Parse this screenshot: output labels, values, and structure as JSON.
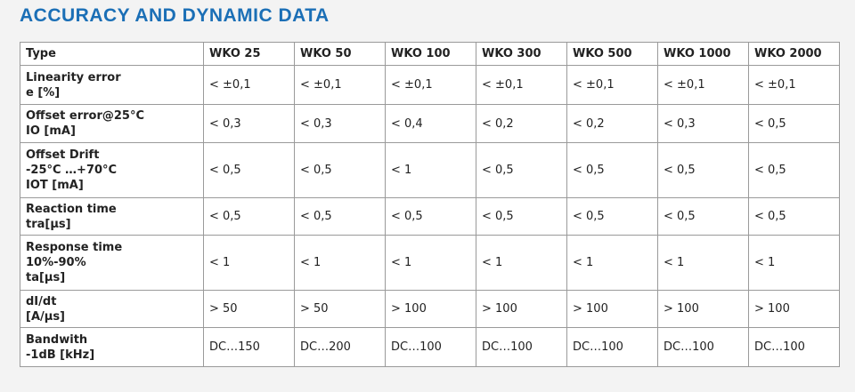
{
  "header": {
    "title": "ACCURACY AND DYNAMIC DATA"
  },
  "table": {
    "columns": [
      "Type",
      "WKO 25",
      "WKO 50",
      "WKO 100",
      "WKO 300",
      "WKO 500",
      "WKO 1000",
      "WKO 2000"
    ],
    "rows": [
      {
        "label": [
          "Linearity error",
          "e [%]"
        ],
        "cells": [
          "< ±0,1",
          "< ±0,1",
          "< ±0,1",
          "< ±0,1",
          "< ±0,1",
          "< ±0,1",
          "< ±0,1"
        ]
      },
      {
        "label": [
          "Offset error@25°C",
          "IO [mA]"
        ],
        "cells": [
          "< 0,3",
          "< 0,3",
          "< 0,4",
          "< 0,2",
          "< 0,2",
          "< 0,3",
          "< 0,5"
        ]
      },
      {
        "label": [
          "Offset Drift",
          "-25°C …+70°C",
          "IOT [mA]"
        ],
        "cells": [
          "< 0,5",
          "< 0,5",
          "< 1",
          "< 0,5",
          "< 0,5",
          "< 0,5",
          "< 0,5"
        ]
      },
      {
        "label": [
          "Reaction time",
          "tra[µs]"
        ],
        "cells": [
          "< 0,5",
          "< 0,5",
          "< 0,5",
          "< 0,5",
          "< 0,5",
          "< 0,5",
          "< 0,5"
        ]
      },
      {
        "label": [
          "Response time",
          "10%-90%",
          "ta[µs]"
        ],
        "cells": [
          "< 1",
          "< 1",
          "< 1",
          "< 1",
          "< 1",
          "< 1",
          "< 1"
        ]
      },
      {
        "label": [
          "dI/dt",
          "[A/µs]"
        ],
        "cells": [
          "> 50",
          "> 50",
          "> 100",
          "> 100",
          "> 100",
          "> 100",
          "> 100"
        ]
      },
      {
        "label": [
          "Bandwith",
          "-1dB [kHz]"
        ],
        "cells": [
          "DC…150",
          "DC…200",
          "DC…100",
          "DC…100",
          "DC…100",
          "DC…100",
          "DC…100"
        ]
      }
    ]
  }
}
